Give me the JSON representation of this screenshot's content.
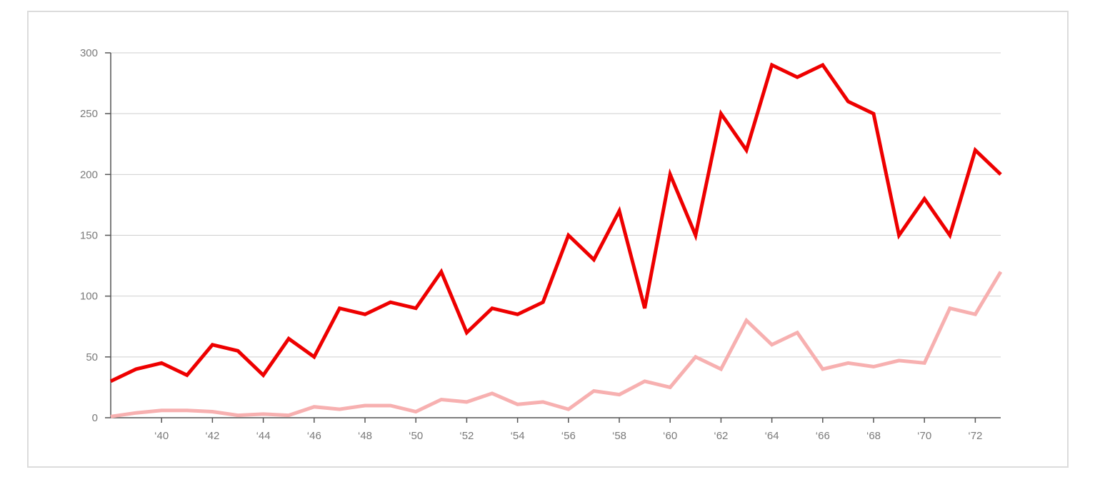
{
  "chart_data": {
    "type": "line",
    "title": "",
    "xlabel": "",
    "ylabel": "",
    "x": [
      1938,
      1939,
      1940,
      1941,
      1942,
      1943,
      1944,
      1945,
      1946,
      1947,
      1948,
      1949,
      1950,
      1951,
      1952,
      1953,
      1954,
      1955,
      1956,
      1957,
      1958,
      1959,
      1960,
      1961,
      1962,
      1963,
      1964,
      1965,
      1966,
      1967,
      1968,
      1969,
      1970,
      1971,
      1972,
      1973
    ],
    "xlim": [
      1938,
      1973
    ],
    "x_ticks": [
      1940,
      1942,
      1944,
      1946,
      1948,
      1950,
      1952,
      1954,
      1956,
      1958,
      1960,
      1962,
      1964,
      1966,
      1968,
      1970,
      1972
    ],
    "x_tick_labels": [
      "‘40",
      "‘42",
      "‘44",
      "‘46",
      "‘48",
      "‘50",
      "‘52",
      "‘54",
      "‘56",
      "‘58",
      "‘60",
      "‘62",
      "‘64",
      "‘66",
      "‘68",
      "‘70",
      "‘72"
    ],
    "ylim": [
      0,
      300
    ],
    "y_ticks": [
      0,
      50,
      100,
      150,
      200,
      250,
      300
    ],
    "y_tick_labels": [
      "0",
      "50",
      "100",
      "150",
      "200",
      "250",
      "300"
    ],
    "grid": true,
    "legend": "none",
    "series": [
      {
        "color": "#ee0000",
        "values": [
          30,
          40,
          45,
          35,
          60,
          55,
          35,
          65,
          50,
          90,
          85,
          95,
          90,
          120,
          70,
          90,
          85,
          95,
          150,
          130,
          170,
          90,
          200,
          150,
          250,
          220,
          290,
          280,
          290,
          260,
          250,
          150,
          180,
          150,
          220,
          200
        ]
      },
      {
        "color": "#f7b0b0",
        "values": [
          1,
          4,
          6,
          6,
          5,
          2,
          3,
          2,
          9,
          7,
          10,
          10,
          5,
          15,
          13,
          20,
          11,
          13,
          7,
          22,
          19,
          30,
          25,
          50,
          40,
          80,
          60,
          70,
          40,
          45,
          42,
          47,
          45,
          90,
          85,
          120
        ]
      }
    ]
  }
}
